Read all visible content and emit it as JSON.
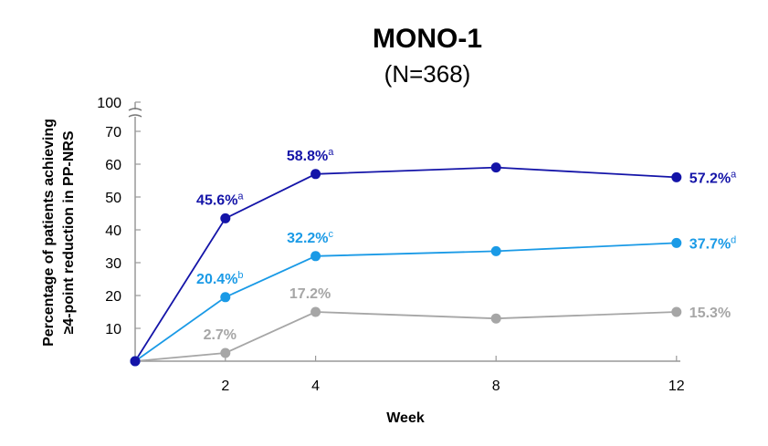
{
  "chart_data": {
    "type": "line",
    "title": "MONO-1",
    "subtitle": "(N=368)",
    "xlabel": "Week",
    "ylabel_lines": [
      "Percentage of patients achieving",
      "≥4-point reduction in PP-NRS"
    ],
    "x_ticks": [
      2,
      4,
      8,
      12
    ],
    "y_ticks": [
      10,
      20,
      30,
      40,
      50,
      60,
      70,
      100
    ],
    "ylim": [
      0,
      100
    ],
    "axis_break": true,
    "grid": false,
    "series": [
      {
        "color": "#1414a8",
        "points": [
          [
            0,
            0
          ],
          [
            2,
            43.5
          ],
          [
            4,
            57
          ],
          [
            8,
            59
          ],
          [
            12,
            56
          ]
        ],
        "labels": [
          {
            "x": 2,
            "text": "45.6%",
            "sup": "a"
          },
          {
            "x": 4,
            "text": "58.8%",
            "sup": "a"
          },
          {
            "x": 12,
            "text": "57.2%",
            "sup": "a"
          }
        ]
      },
      {
        "color": "#1a9ae6",
        "points": [
          [
            0,
            0
          ],
          [
            2,
            19.5
          ],
          [
            4,
            32
          ],
          [
            8,
            33.5
          ],
          [
            12,
            36
          ]
        ],
        "labels": [
          {
            "x": 2,
            "text": "20.4%",
            "sup": "b"
          },
          {
            "x": 4,
            "text": "32.2%",
            "sup": "c"
          },
          {
            "x": 12,
            "text": "37.7%",
            "sup": "d"
          }
        ]
      },
      {
        "color": "#a6a6a6",
        "points": [
          [
            0,
            0
          ],
          [
            2,
            2.5
          ],
          [
            4,
            15
          ],
          [
            8,
            13
          ],
          [
            12,
            15
          ]
        ],
        "labels": [
          {
            "x": 2,
            "text": "2.7%",
            "sup": ""
          },
          {
            "x": 4,
            "text": "17.2%",
            "sup": ""
          },
          {
            "x": 12,
            "text": "15.3%",
            "sup": ""
          }
        ]
      }
    ]
  }
}
